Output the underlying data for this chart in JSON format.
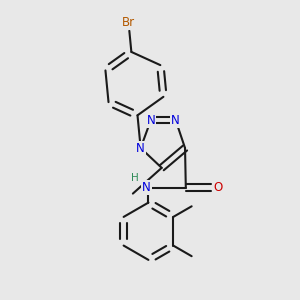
{
  "bg_color": "#e8e8e8",
  "bond_color": "#1a1a1a",
  "n_color": "#0000dd",
  "o_color": "#cc0000",
  "br_color": "#b35900",
  "h_color": "#2e8b57",
  "line_width": 1.5,
  "font_size": 8.5,
  "dbo": 0.03,
  "xlim": [
    0.4,
    2.6
  ],
  "ylim": [
    0.2,
    3.0
  ]
}
